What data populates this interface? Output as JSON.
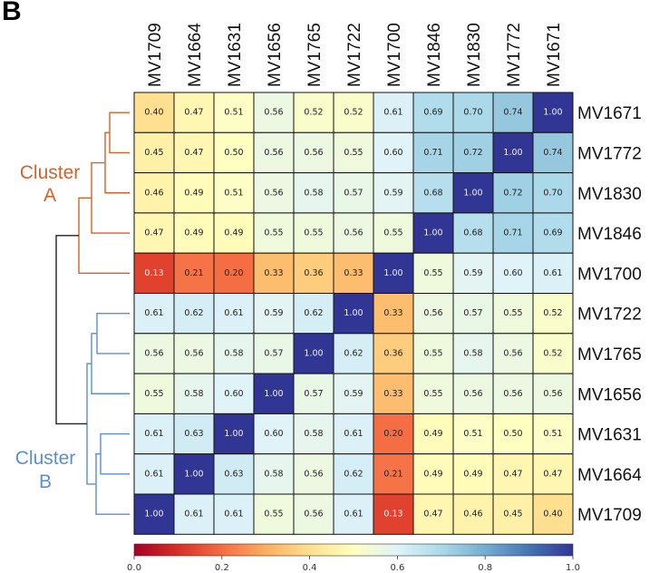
{
  "panel_letter": "B",
  "chart_data": {
    "type": "heatmap",
    "columns": [
      "MV1709",
      "MV1664",
      "MV1631",
      "MV1656",
      "MV1765",
      "MV1722",
      "MV1700",
      "MV1846",
      "MV1830",
      "MV1772",
      "MV1671"
    ],
    "rows": [
      "MV1671",
      "MV1772",
      "MV1830",
      "MV1846",
      "MV1700",
      "MV1722",
      "MV1765",
      "MV1656",
      "MV1631",
      "MV1664",
      "MV1709"
    ],
    "values": [
      [
        0.4,
        0.47,
        0.51,
        0.56,
        0.52,
        0.52,
        0.61,
        0.69,
        0.7,
        0.74,
        1.0
      ],
      [
        0.45,
        0.47,
        0.5,
        0.56,
        0.56,
        0.55,
        0.6,
        0.71,
        0.72,
        1.0,
        0.74
      ],
      [
        0.46,
        0.49,
        0.51,
        0.56,
        0.58,
        0.57,
        0.59,
        0.68,
        1.0,
        0.72,
        0.7
      ],
      [
        0.47,
        0.49,
        0.49,
        0.55,
        0.55,
        0.56,
        0.55,
        1.0,
        0.68,
        0.71,
        0.69
      ],
      [
        0.13,
        0.21,
        0.2,
        0.33,
        0.36,
        0.33,
        1.0,
        0.55,
        0.59,
        0.6,
        0.61
      ],
      [
        0.61,
        0.62,
        0.61,
        0.59,
        0.62,
        1.0,
        0.33,
        0.56,
        0.57,
        0.55,
        0.52
      ],
      [
        0.56,
        0.56,
        0.58,
        0.57,
        1.0,
        0.62,
        0.36,
        0.55,
        0.58,
        0.56,
        0.52
      ],
      [
        0.55,
        0.58,
        0.6,
        1.0,
        0.57,
        0.59,
        0.33,
        0.55,
        0.56,
        0.56,
        0.56
      ],
      [
        0.61,
        0.63,
        1.0,
        0.6,
        0.58,
        0.61,
        0.2,
        0.49,
        0.51,
        0.5,
        0.51
      ],
      [
        0.61,
        1.0,
        0.63,
        0.58,
        0.56,
        0.62,
        0.21,
        0.49,
        0.49,
        0.47,
        0.47
      ],
      [
        1.0,
        0.61,
        0.61,
        0.55,
        0.56,
        0.61,
        0.13,
        0.47,
        0.46,
        0.45,
        0.4
      ]
    ],
    "value_range": [
      0.0,
      1.0
    ],
    "colorbar": {
      "ticks": [
        "0.0",
        "0.2",
        "0.4",
        "0.6",
        "0.8",
        "1.0"
      ],
      "colormap": "RdYlBu"
    },
    "clusters": [
      {
        "label_line1": "Cluster",
        "label_line2": "A",
        "color": "#d4622b",
        "members": [
          "MV1671",
          "MV1772",
          "MV1830",
          "MV1846",
          "MV1700"
        ]
      },
      {
        "label_line1": "Cluster",
        "label_line2": "B",
        "color": "#5b8fd0",
        "members": [
          "MV1722",
          "MV1765",
          "MV1656",
          "MV1631",
          "MV1664",
          "MV1709"
        ]
      }
    ],
    "dendrogram_root_color": "#222222"
  }
}
